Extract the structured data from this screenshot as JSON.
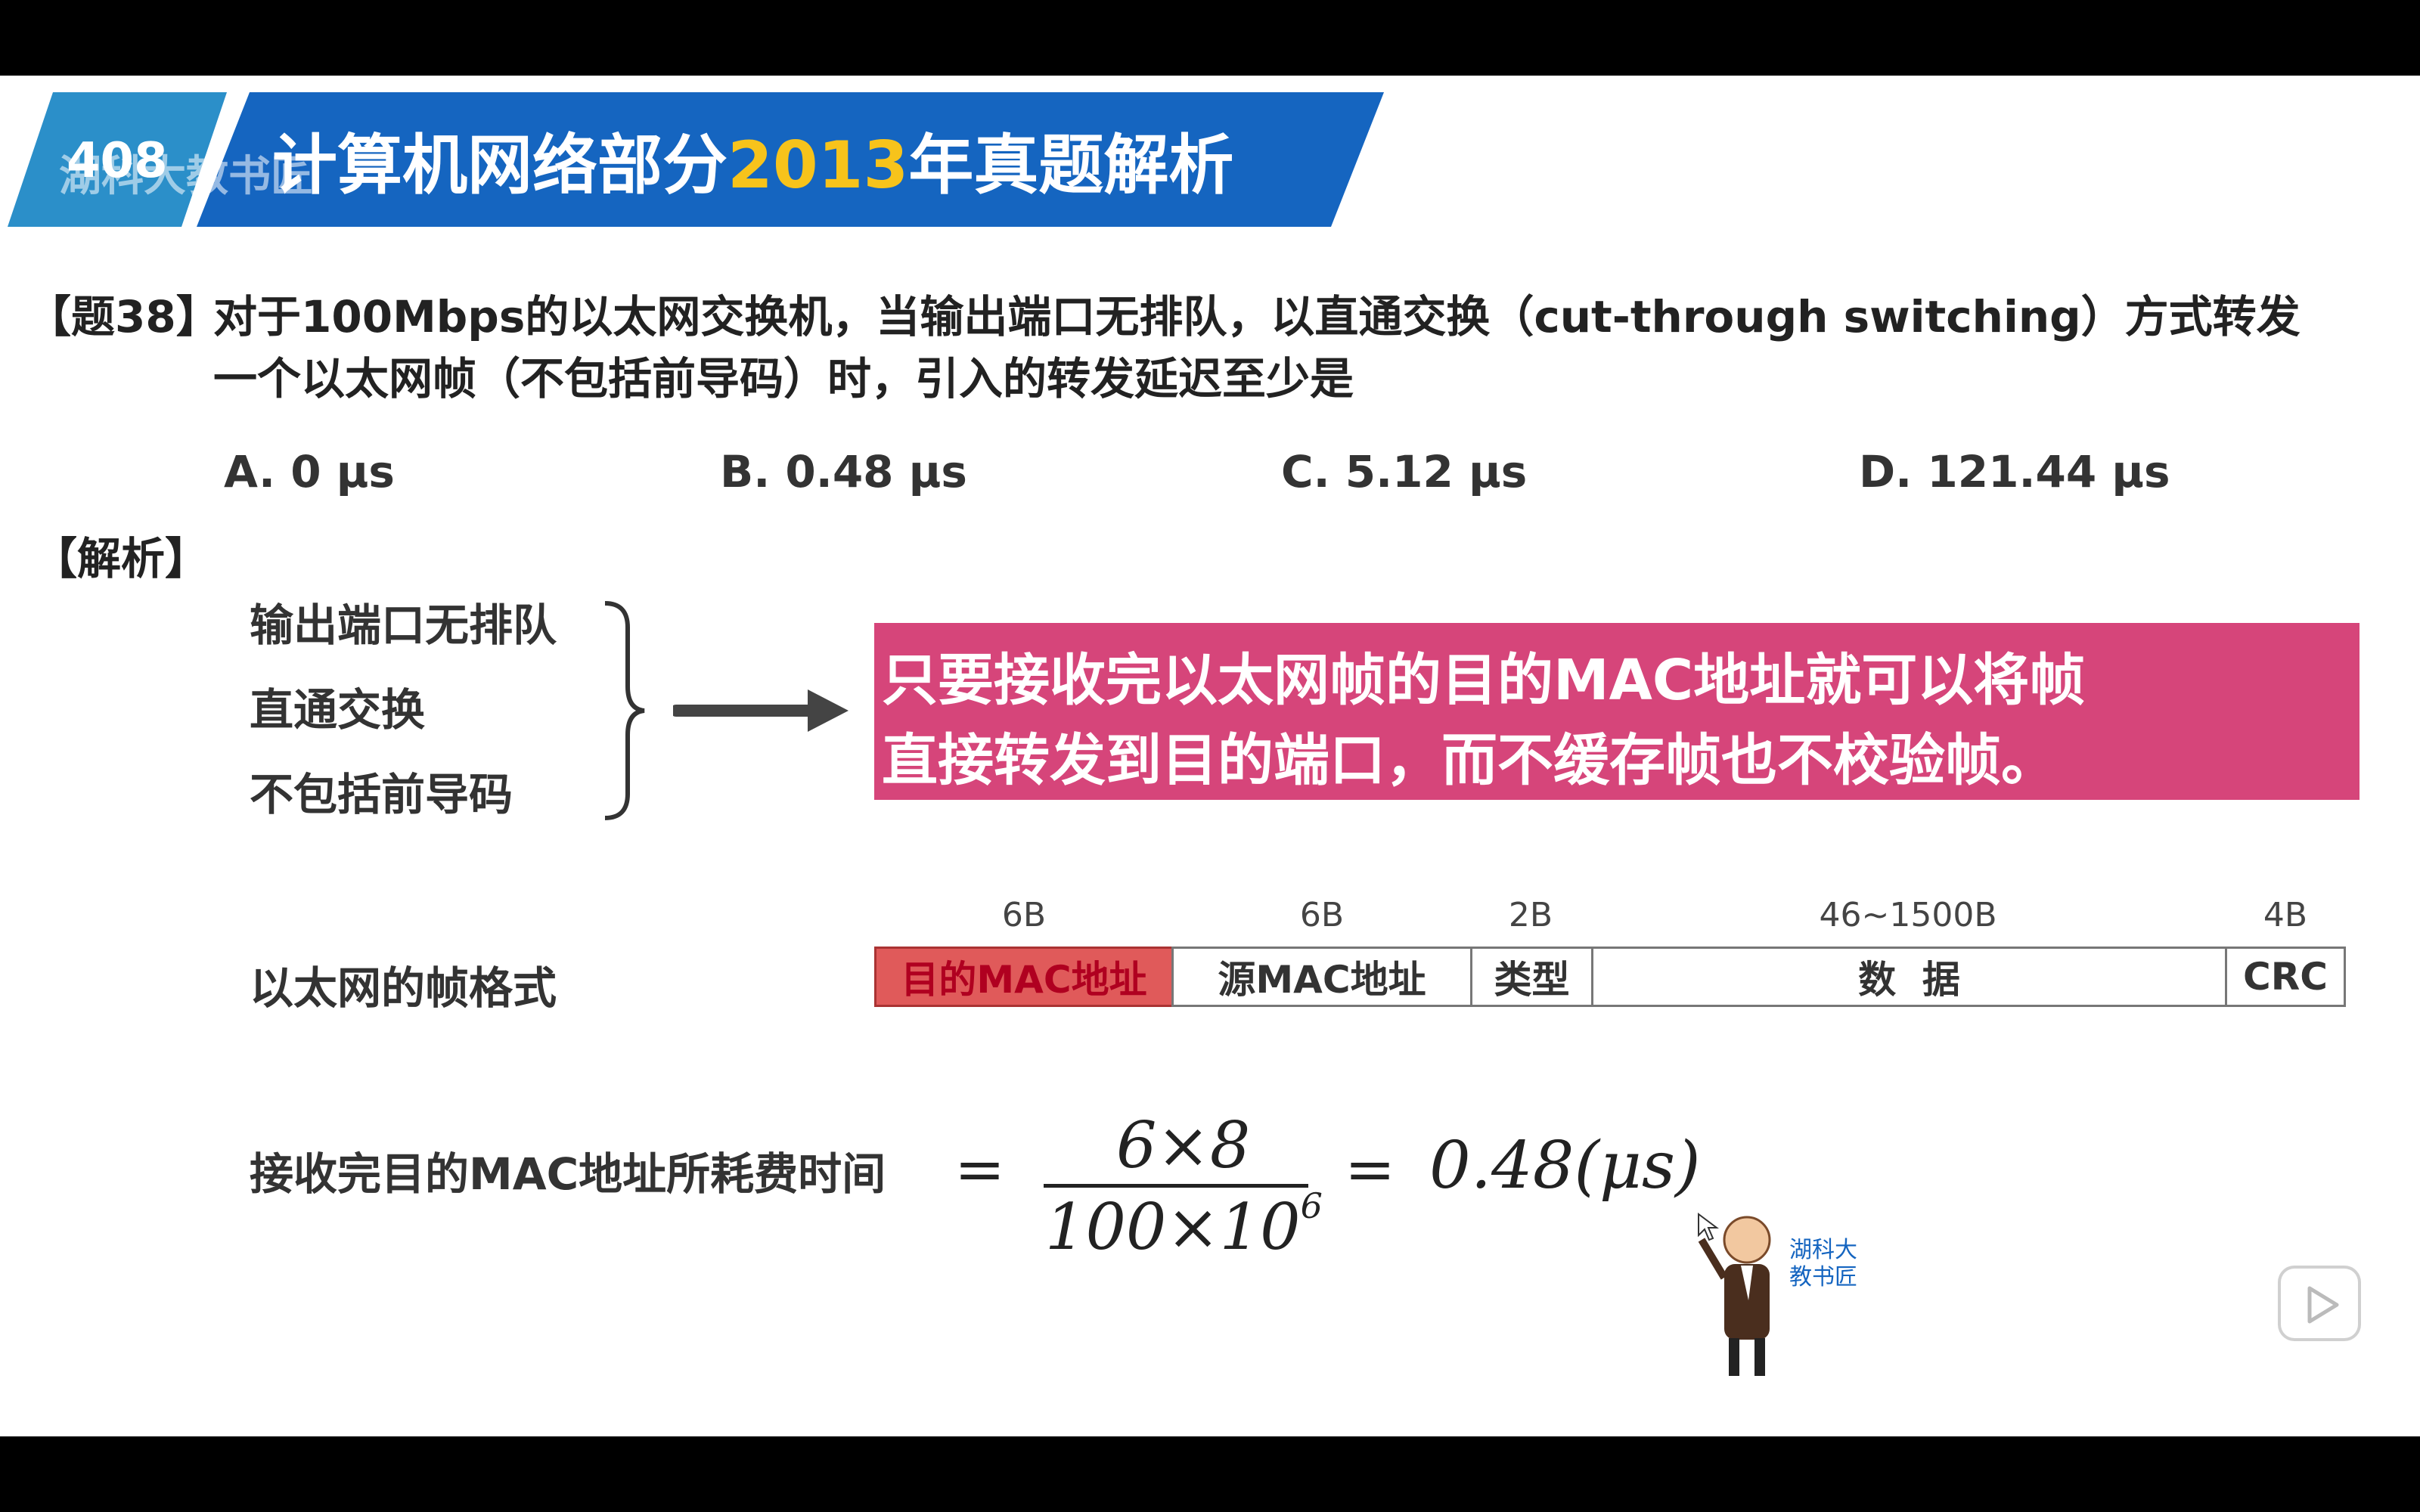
{
  "header": {
    "badge_text": "408",
    "watermark": "湖科大教书匠",
    "title_prefix": "计算机网络部分",
    "title_year": "2013",
    "title_suffix": "年真题解析"
  },
  "question": {
    "number": "【题38】",
    "line1": "对于100Mbps的以太网交换机，当输出端口无排队，以直通交换（cut-through switching）方式转发",
    "line2": "一个以太网帧（不包括前导码）时，引入的转发延迟至少是"
  },
  "options": [
    {
      "label": "A. 0 μs"
    },
    {
      "label": "B. 0.48 μs"
    },
    {
      "label": "C. 5.12 μs"
    },
    {
      "label": "D. 121.44 μs"
    }
  ],
  "analysis_label": "【解析】",
  "conditions": [
    "输出端口无排队",
    "直通交换",
    "不包括前导码"
  ],
  "conclusion": {
    "line1": "只要接收完以太网帧的目的MAC地址就可以将帧",
    "line2": "直接转发到目的端口，而不缓存帧也不校验帧。"
  },
  "frame_format": {
    "label": "以太网的帧格式",
    "fields": [
      {
        "size": "6B",
        "name": "目的MAC地址"
      },
      {
        "size": "6B",
        "name": "源MAC地址"
      },
      {
        "size": "2B",
        "name": "类型"
      },
      {
        "size": "46~1500B",
        "name": "数  据"
      },
      {
        "size": "4B",
        "name": "CRC"
      }
    ]
  },
  "formula": {
    "label": "接收完目的MAC地址所耗费时间",
    "eq1": "=",
    "numerator": "6×8",
    "denominator_base": "100×10",
    "denominator_exp": "6",
    "eq2": "=",
    "result": "0.48(μs)"
  },
  "mascot_caption": {
    "line1": "湖科大",
    "line2": "教书匠"
  },
  "colors": {
    "header_blue": "#1565c0",
    "badge_blue": "#2b8fc9",
    "year_yellow": "#f7c31b",
    "highlight_pink": "#d6457a",
    "dest_mac_red": "#e05a5a"
  }
}
